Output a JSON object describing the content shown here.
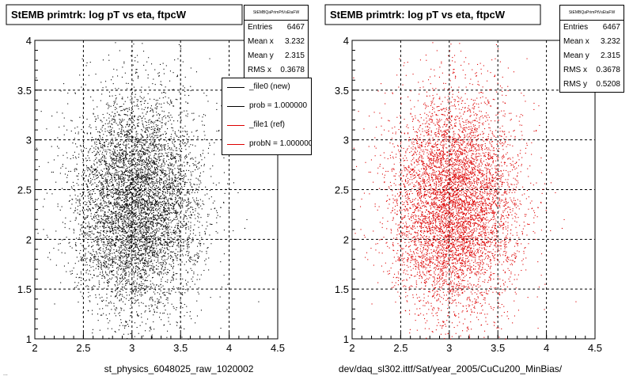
{
  "colors": {
    "new": "#000000",
    "ref": "#dd0000",
    "grid": "#000000"
  },
  "footer_text": "...",
  "legend": {
    "entries": [
      {
        "label": "_file0 (new)",
        "color": "#000000"
      },
      {
        "label": "prob = 1.000000",
        "color": "#000000"
      },
      {
        "label": "_file1 (ref)",
        "color": "#dd0000"
      },
      {
        "label": "probN = 1.000000",
        "color": "#dd0000"
      }
    ]
  },
  "chart_data": [
    {
      "type": "scatter",
      "title": "StEMB primtrk: log pT vs eta, ftpcW",
      "xlabel": "st_physics_6048025_raw_1020002",
      "ylabel": "",
      "xlim": [
        2,
        4.5
      ],
      "ylim": [
        1,
        4
      ],
      "xticks": [
        "2",
        "2.5",
        "3",
        "3.5",
        "4",
        "4.5"
      ],
      "yticks": [
        "1",
        "1.5",
        "2",
        "2.5",
        "3",
        "3.5",
        "4"
      ],
      "grid": true,
      "series": [
        {
          "name": "_file0 (new)",
          "color": "#000000",
          "center": [
            3.05,
            2.35
          ],
          "spread": [
            0.32,
            0.55
          ],
          "n": 6467
        }
      ],
      "stats": {
        "title": "StEMBQaPrimPtVsEtaFW",
        "rows": [
          {
            "label": "Entries",
            "value": "6467"
          },
          {
            "label": "Mean x",
            "value": "3.232"
          },
          {
            "label": "Mean y",
            "value": "2.315"
          },
          {
            "label": "RMS x",
            "value": "0.3678"
          }
        ]
      }
    },
    {
      "type": "scatter",
      "title": "StEMB primtrk: log pT vs eta, ftpcW",
      "xlabel": "dev/daq_sl302.ittf/Sat/year_2005/CuCu200_MinBias/",
      "ylabel": "",
      "xlim": [
        2,
        4.5
      ],
      "ylim": [
        1,
        4
      ],
      "xticks": [
        "2",
        "2.5",
        "3",
        "3.5",
        "4",
        "4.5"
      ],
      "yticks": [
        "1",
        "1.5",
        "2",
        "2.5",
        "3",
        "3.5",
        "4"
      ],
      "grid": true,
      "series": [
        {
          "name": "_file1 (ref)",
          "color": "#dd0000",
          "center": [
            3.05,
            2.35
          ],
          "spread": [
            0.32,
            0.55
          ],
          "n": 6467
        }
      ],
      "stats": {
        "title": "StEMBQaPrimPtVsEtaFW",
        "rows": [
          {
            "label": "Entries",
            "value": "6467"
          },
          {
            "label": "Mean x",
            "value": "3.232"
          },
          {
            "label": "Mean y",
            "value": "2.315"
          },
          {
            "label": "RMS x",
            "value": "0.3678"
          },
          {
            "label": "RMS y",
            "value": "0.5208"
          }
        ]
      }
    }
  ]
}
